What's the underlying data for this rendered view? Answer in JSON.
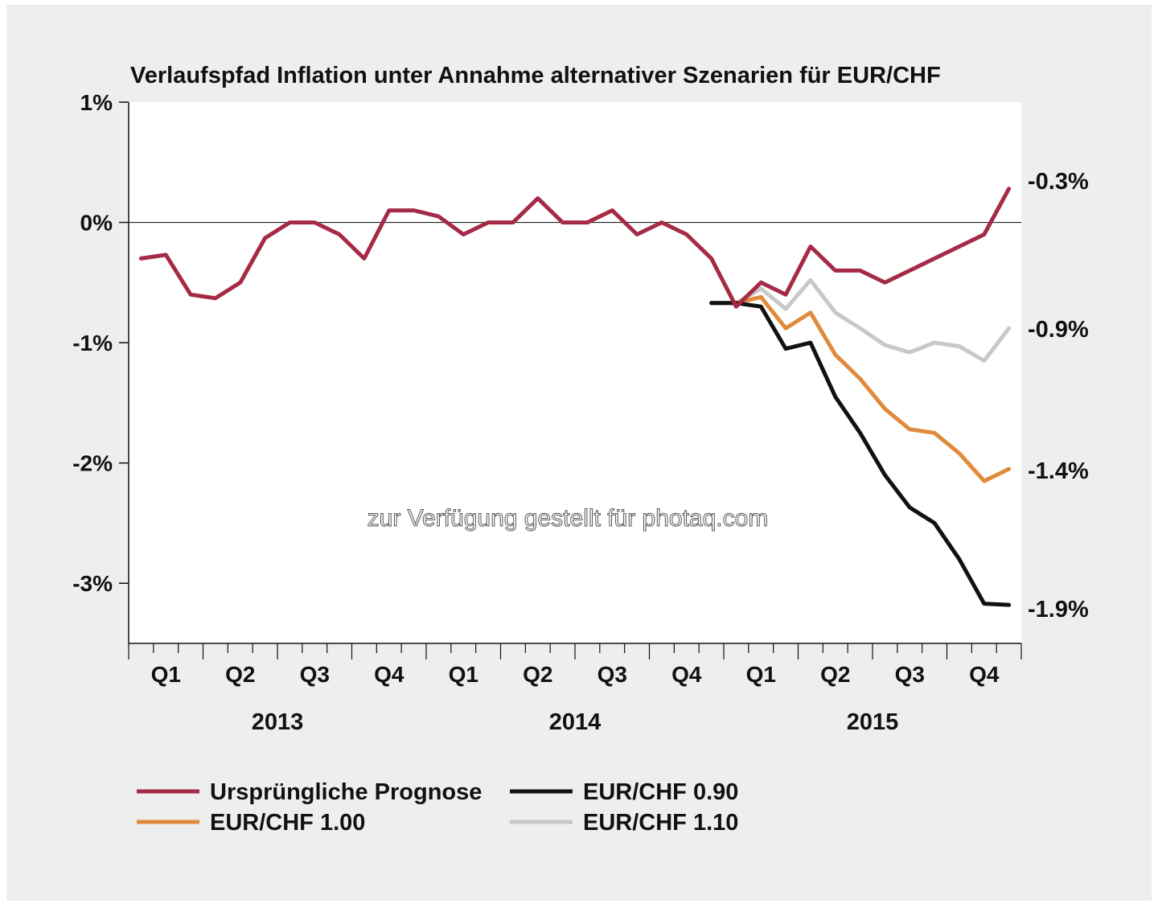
{
  "chart_data": {
    "type": "line",
    "title": "Verlaufspfad Inflation unter Annahme alternativer Szenarien für EUR/CHF",
    "xlabel": "",
    "ylabel": "",
    "y_ticks": [
      "1%",
      "0%",
      "-1%",
      "-2%",
      "-3%"
    ],
    "y_tick_values": [
      1,
      0,
      -1,
      -2,
      -3
    ],
    "ylim": [
      -3.5,
      1.0
    ],
    "x_quarter_labels": [
      "Q1",
      "Q2",
      "Q3",
      "Q4",
      "Q1",
      "Q2",
      "Q3",
      "Q4",
      "Q1",
      "Q2",
      "Q3",
      "Q4"
    ],
    "x_year_labels": [
      "2013",
      "2014",
      "2015"
    ],
    "months_total": 36,
    "grid": false,
    "zero_line": true,
    "end_labels": [
      "-0.3%",
      "-0.9%",
      "-1.4%",
      "-1.9%"
    ],
    "legend_position": "bottom",
    "watermark": "zur Verfügung gestellt für photaq.com",
    "series": [
      {
        "name": "Ursprüngliche Prognose",
        "color": "#a52a45",
        "start_month": 0,
        "values": [
          -0.3,
          -0.27,
          -0.6,
          -0.63,
          -0.5,
          -0.13,
          0.0,
          0.0,
          -0.1,
          -0.3,
          0.1,
          0.1,
          0.05,
          -0.1,
          0.0,
          0.0,
          0.2,
          0.0,
          0.0,
          0.1,
          -0.1,
          0.0,
          -0.1,
          -0.3,
          -0.7,
          -0.5,
          -0.6,
          -0.2,
          -0.4,
          -0.4,
          -0.5,
          -0.4,
          -0.3,
          -0.2,
          -0.1,
          0.28
        ],
        "end_label": "-0.3%"
      },
      {
        "name": "EUR/CHF 0.90",
        "color": "#111111",
        "start_month": 23,
        "values": [
          -0.67,
          -0.67,
          -0.7,
          -1.05,
          -1.0,
          -1.45,
          -1.75,
          -2.1,
          -2.37,
          -2.5,
          -2.8,
          -3.17,
          -3.18
        ],
        "end_label": "-1.9%"
      },
      {
        "name": "EUR/CHF 1.00",
        "color": "#e08a3c",
        "start_month": 23,
        "values": [
          -0.67,
          -0.67,
          -0.62,
          -0.88,
          -0.75,
          -1.1,
          -1.3,
          -1.55,
          -1.72,
          -1.75,
          -1.92,
          -2.15,
          -2.05
        ],
        "end_label": "-1.4%"
      },
      {
        "name": "EUR/CHF 1.10",
        "color": "#c8c8c8",
        "start_month": 23,
        "values": [
          -0.67,
          -0.67,
          -0.55,
          -0.72,
          -0.48,
          -0.75,
          -0.88,
          -1.02,
          -1.08,
          -1.0,
          -1.03,
          -1.15,
          -0.88
        ],
        "end_label": "-0.9%"
      }
    ],
    "legend": [
      {
        "label": "Ursprüngliche Prognose",
        "color": "#a52a45"
      },
      {
        "label": "EUR/CHF 0.90",
        "color": "#111111"
      },
      {
        "label": "EUR/CHF 1.00",
        "color": "#e08a3c"
      },
      {
        "label": "EUR/CHF 1.10",
        "color": "#c8c8c8"
      }
    ]
  }
}
